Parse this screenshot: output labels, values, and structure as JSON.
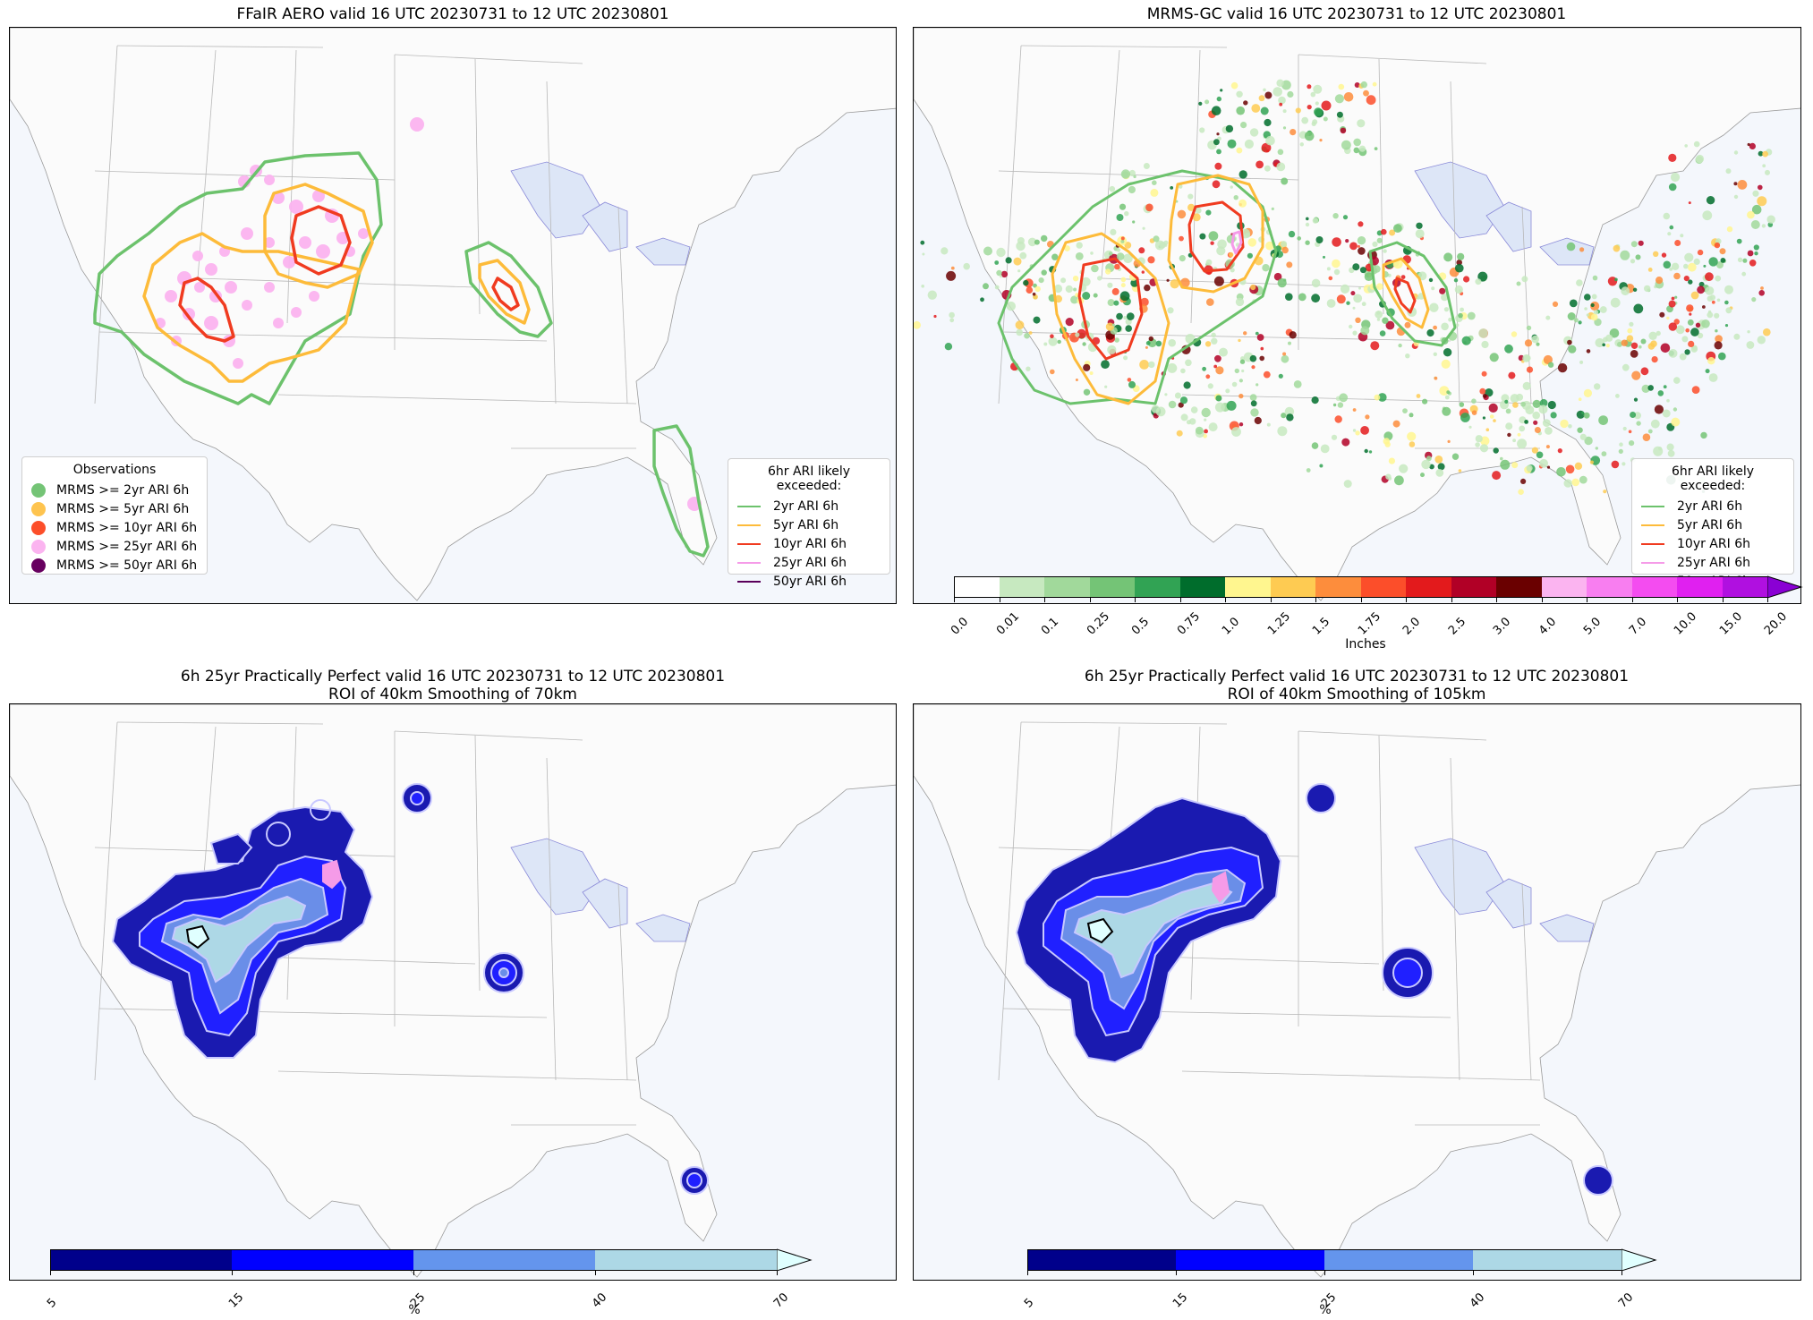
{
  "panels": {
    "tl": {
      "title": "FFaIR AERO valid 16 UTC 20230731 to 12 UTC 20230801"
    },
    "tr": {
      "title": "MRMS-GC valid 16 UTC 20230731 to 12 UTC 20230801"
    },
    "bl": {
      "title_line1": "6h 25yr Practically Perfect valid 16 UTC 20230731 to 12 UTC 20230801",
      "title_line2": "ROI of 40km Smoothing of 70km"
    },
    "br": {
      "title_line1": "6h 25yr Practically Perfect valid 16 UTC 20230731 to 12 UTC 20230801",
      "title_line2": "ROI of 40km Smoothing of 105km"
    }
  },
  "obs_legend": {
    "title": "Observations",
    "items": [
      {
        "label": "MRMS >= 2yr ARI 6h",
        "color": "#74c476"
      },
      {
        "label": "MRMS >= 5yr ARI 6h",
        "color": "#fec44f"
      },
      {
        "label": "MRMS >= 10yr ARI 6h",
        "color": "#fc4e2a"
      },
      {
        "label": "MRMS >= 25yr ARI 6h",
        "color": "#fbb4f0"
      },
      {
        "label": "MRMS >= 50yr ARI 6h",
        "color": "#67005f"
      }
    ]
  },
  "ari_legend": {
    "title": "6hr ARI likely exceeded:",
    "items": [
      {
        "label": "2yr ARI 6h",
        "color": "#6cc26c"
      },
      {
        "label": "5yr ARI 6h",
        "color": "#fdbb3a"
      },
      {
        "label": "10yr ARI 6h",
        "color": "#f03b20"
      },
      {
        "label": "25yr ARI 6h",
        "color": "#f59be8"
      },
      {
        "label": "50yr ARI 6h",
        "color": "#5a005a"
      }
    ]
  },
  "precip_colorbar": {
    "label": "Inches",
    "ticks": [
      "0.0",
      "0.01",
      "0.1",
      "0.25",
      "0.5",
      "0.75",
      "1.0",
      "1.25",
      "1.5",
      "1.75",
      "2.0",
      "2.5",
      "3.0",
      "4.0",
      "5.0",
      "7.0",
      "10.0",
      "15.0",
      "20.0"
    ],
    "colors": [
      "#ffffff",
      "#c7e9c0",
      "#a1d99b",
      "#74c476",
      "#31a354",
      "#006d2c",
      "#fff68f",
      "#fecb52",
      "#fd8d3c",
      "#fc4e2a",
      "#e31a1c",
      "#b10026",
      "#6a0000",
      "#fbb4f0",
      "#f87ef0",
      "#f44cf0",
      "#e020f0",
      "#b010e0"
    ],
    "extend_color": "#8a00d4"
  },
  "prob_colorbar": {
    "label": "%",
    "ticks": [
      "5",
      "15",
      "25",
      "40",
      "70"
    ],
    "colors": [
      "#00008b",
      "#0000ff",
      "#6495ed",
      "#add8e6"
    ],
    "extend_color": "#e0ffff"
  }
}
